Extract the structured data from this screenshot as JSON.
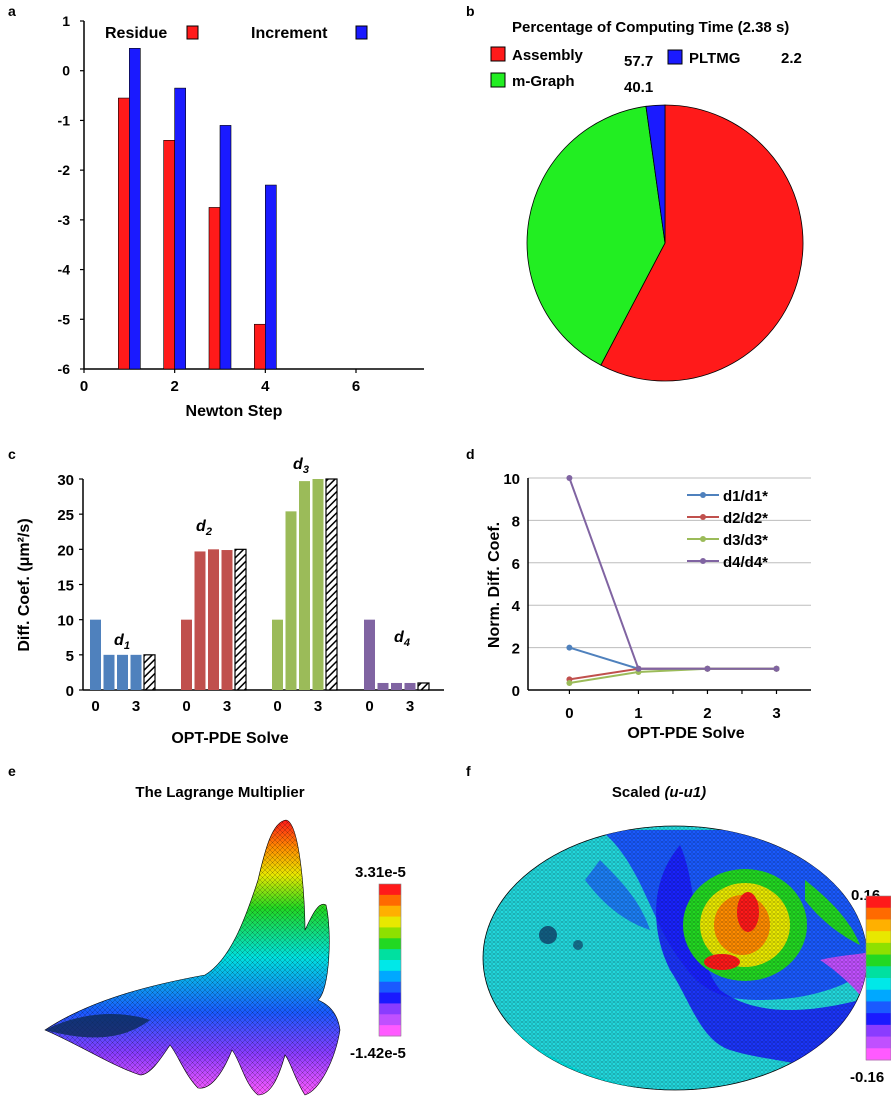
{
  "panels": {
    "a": "a",
    "b": "b",
    "c": "c",
    "d": "d",
    "e": "e",
    "f": "f"
  },
  "chart_data": [
    {
      "panel": "a",
      "type": "bar",
      "xlabel": "Newton Step",
      "ylabel": "",
      "xlim": [
        0,
        7.5
      ],
      "ylim": [
        -6,
        1
      ],
      "x_ticks": [
        "0",
        "2",
        "4",
        "6"
      ],
      "y_ticks": [
        "1",
        "0",
        "-1",
        "-2",
        "-3",
        "-4",
        "-5",
        "-6"
      ],
      "legend_position": "top",
      "x": [
        1,
        2,
        3,
        4
      ],
      "series": [
        {
          "name": "Residue",
          "color": "#ff1a1a",
          "values": [
            -0.55,
            -1.4,
            -2.75,
            -5.1
          ]
        },
        {
          "name": "Increment",
          "color": "#1a1aff",
          "values": [
            0.45,
            -0.35,
            -1.1,
            -2.3
          ]
        }
      ]
    },
    {
      "panel": "b",
      "type": "pie",
      "title": "Percentage of Computing Time (2.38 s)",
      "legend_position": "top",
      "slices": [
        {
          "name": "Assembly",
          "value": 57.7,
          "label": "57.7",
          "color": "#ff1a1a"
        },
        {
          "name": "m-Graph",
          "value": 40.1,
          "label": "40.1",
          "color": "#22ee22"
        },
        {
          "name": "PLTMG",
          "value": 2.2,
          "label": "2.2",
          "color": "#1a1aff"
        }
      ]
    },
    {
      "panel": "c",
      "type": "bar",
      "xlabel": "OPT-PDE Solve",
      "ylabel": "Diff. Coef. (μm²/s)",
      "ylim": [
        0,
        30
      ],
      "y_ticks": [
        "0",
        "5",
        "10",
        "15",
        "20",
        "25",
        "30"
      ],
      "x_tick_labels": [
        "0",
        "3"
      ],
      "groups": [
        {
          "label": "d1",
          "label_main": "d",
          "label_sub": "1",
          "color": "#4f81bd",
          "values": [
            10,
            5,
            5,
            5
          ],
          "target": 5
        },
        {
          "label": "d2",
          "label_main": "d",
          "label_sub": "2",
          "color": "#c0504d",
          "values": [
            10,
            19.7,
            20,
            19.9
          ],
          "target": 20
        },
        {
          "label": "d3",
          "label_main": "d",
          "label_sub": "3",
          "color": "#9bbb59",
          "values": [
            10,
            25.4,
            29.7,
            30
          ],
          "target": 30
        },
        {
          "label": "d4",
          "label_main": "d",
          "label_sub": "4",
          "color": "#8064a2",
          "values": [
            10,
            1,
            1,
            1
          ],
          "target": 1
        }
      ]
    },
    {
      "panel": "d",
      "type": "line",
      "xlabel": "OPT-PDE Solve",
      "ylabel": "Norm. Diff. Coef.",
      "x": [
        0,
        1,
        2,
        3
      ],
      "xlim": [
        -0.6,
        3.5
      ],
      "ylim": [
        0,
        10
      ],
      "x_ticks": [
        "0",
        "1",
        "2",
        "3"
      ],
      "y_ticks": [
        "0",
        "2",
        "4",
        "6",
        "8",
        "10"
      ],
      "grid": true,
      "legend_position": "top-right",
      "series": [
        {
          "name": "d1/d1*",
          "color": "#4f81bd",
          "values": [
            2,
            1,
            1,
            1
          ]
        },
        {
          "name": "d2/d2*",
          "color": "#c0504d",
          "values": [
            0.5,
            1,
            1,
            1
          ]
        },
        {
          "name": "d3/d3*",
          "color": "#9bbb59",
          "values": [
            0.33,
            0.85,
            1,
            1
          ]
        },
        {
          "name": "d4/d4*",
          "color": "#8064a2",
          "values": [
            10,
            1,
            1,
            1
          ]
        }
      ]
    },
    {
      "panel": "e",
      "type": "surface",
      "title": "The Lagrange Multiplier",
      "colorbar": {
        "max_label": "3.31e-5",
        "min_label": "-1.42e-5"
      }
    },
    {
      "panel": "f",
      "type": "surface",
      "title_prefix": "Scaled ",
      "title_italic": "(u-u1)",
      "colorbar": {
        "max_label": "0.16",
        "min_label": "-0.16"
      }
    }
  ],
  "colormap": [
    "#ff1a1a",
    "#ff6a00",
    "#ffb000",
    "#e8e800",
    "#8ee000",
    "#22d822",
    "#00e0a0",
    "#00e8e8",
    "#00a8ff",
    "#1a5aff",
    "#1a1aff",
    "#8a3cff",
    "#c050ff",
    "#ff5aff"
  ]
}
